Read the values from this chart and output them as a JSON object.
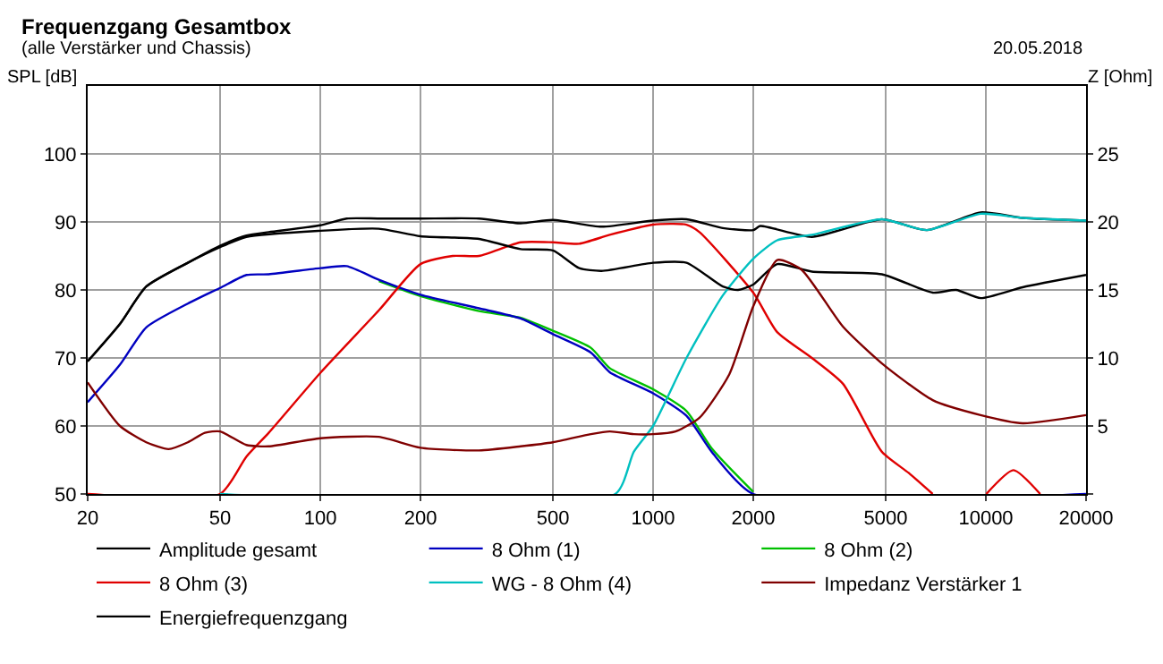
{
  "chart_data": {
    "type": "line",
    "title": "Frequenzgang Gesamtbox",
    "subtitle": "(alle Verstärker und Chassis)",
    "annotations": [
      "20.05.2018"
    ],
    "xlabel": null,
    "ylabel": "SPL [dB]",
    "y2label": "Z [Ohm]",
    "log": "x",
    "grid": true,
    "legend": "bottom",
    "line_style": "solid",
    "marker": "none",
    "xlim": [
      20,
      20000
    ],
    "xticks": [
      20,
      50,
      100,
      200,
      500,
      1000,
      2000,
      5000,
      10000,
      20000
    ],
    "ylim": [
      50,
      110
    ],
    "yticks": [
      50,
      60,
      70,
      80,
      90,
      100
    ],
    "y2lim": [
      0,
      30
    ],
    "y2ticks": [
      {
        "value": 0,
        "label": null
      },
      5,
      10,
      15,
      20,
      25
    ],
    "series": [
      {
        "name": "Amplitude gesamt",
        "color": "#000000",
        "x": [
          20,
          25,
          30,
          40,
          50,
          60,
          70,
          100,
          120,
          150,
          200,
          300,
          400,
          500,
          700,
          1000,
          1260,
          1620,
          2000,
          2100,
          3000,
          4870,
          6650,
          9640,
          12900,
          20000
        ],
        "values": [
          69.5,
          75,
          80.5,
          84,
          86.5,
          88,
          88.5,
          89.5,
          90.5,
          90.5,
          90.5,
          90.5,
          89.8,
          90.3,
          89.3,
          90.2,
          90.4,
          89.1,
          88.8,
          89.4,
          87.8,
          90.4,
          88.8,
          91.4,
          90.6,
          90.2
        ]
      },
      {
        "name": "8 Ohm (1)",
        "color": "#0000c0",
        "x": [
          20,
          25,
          30,
          40,
          50,
          60,
          70,
          100,
          120,
          150,
          200,
          300,
          400,
          500,
          650,
          741,
          1000,
          1260,
          1500,
          2000,
          20000
        ],
        "values": [
          63.5,
          69,
          74.5,
          78,
          80.3,
          82.2,
          82.3,
          83.2,
          83.5,
          81.5,
          79.3,
          77.3,
          75.8,
          73.5,
          70.8,
          67.9,
          64.8,
          61.5,
          56.2,
          50,
          50
        ]
      },
      {
        "name": "8 Ohm (2)",
        "color": "#00c000",
        "x": [
          150,
          200,
          300,
          400,
          500,
          650,
          741,
          1000,
          1260,
          1500,
          2000
        ],
        "values": [
          81.3,
          79.1,
          76.9,
          75.9,
          74,
          71.5,
          68.5,
          65.4,
          62.2,
          56.7,
          50.3
        ]
      },
      {
        "name": "8 Ohm (3)",
        "color": "#e00000",
        "x": [
          20,
          50,
          60,
          70,
          100,
          150,
          200,
          250,
          300,
          400,
          500,
          600,
          741,
          1000,
          1260,
          1378,
          2000,
          2360,
          3000,
          3720,
          4870,
          5860,
          6920,
          8500,
          10030,
          12100,
          14560
        ],
        "values": [
          50,
          50,
          55.5,
          59,
          67.8,
          77,
          83.8,
          85,
          85,
          87,
          87,
          86.8,
          88.1,
          89.6,
          89.6,
          88.5,
          79.6,
          73.8,
          70,
          66.2,
          56.2,
          53.1,
          50,
          null,
          50,
          53.5,
          50
        ]
      },
      {
        "name": "WG - 8 Ohm (4)",
        "color": "#00c0c0",
        "x": [
          50,
          770,
          875,
          1000,
          1260,
          1620,
          2000,
          2360,
          3000,
          4870,
          6650,
          9640,
          12900,
          20000
        ],
        "values": [
          50,
          50,
          56.2,
          60,
          70,
          79.2,
          84.6,
          87.3,
          88.1,
          90.4,
          88.8,
          91.2,
          90.6,
          90.2
        ]
      },
      {
        "name": "Impedanz Verstärker 1",
        "color": "#800000",
        "axis": "y2",
        "x": [
          20,
          25,
          30,
          35,
          40,
          45,
          50,
          60,
          70,
          100,
          150,
          200,
          300,
          400,
          500,
          650,
          741,
          875,
          1000,
          1168,
          1378,
          1695,
          2000,
          2360,
          2790,
          3720,
          4870,
          6920,
          9640,
          12900,
          20000
        ],
        "values": [
          8.2,
          5.0,
          3.8,
          3.3,
          3.8,
          4.5,
          4.6,
          3.6,
          3.5,
          4.1,
          4.2,
          3.4,
          3.2,
          3.5,
          3.8,
          4.4,
          4.6,
          4.4,
          4.4,
          4.6,
          5.6,
          8.8,
          13.8,
          17.2,
          16.5,
          12.3,
          9.6,
          6.9,
          5.8,
          5.2,
          5.8
        ]
      },
      {
        "name": "Energiefrequenzgang",
        "color": "#000000",
        "x": [
          20,
          25,
          30,
          40,
          50,
          60,
          100,
          150,
          200,
          300,
          400,
          500,
          600,
          700,
          1000,
          1260,
          1620,
          1800,
          2000,
          2360,
          3000,
          4870,
          6920,
          8140,
          9640,
          12900,
          20000
        ],
        "values": [
          69.5,
          75,
          80.5,
          84,
          86.3,
          87.8,
          88.7,
          89,
          87.9,
          87.5,
          86,
          85.8,
          83.2,
          82.8,
          84,
          84,
          80.5,
          80,
          80.8,
          83.8,
          82.7,
          82.3,
          79.6,
          80,
          78.8,
          80.4,
          82.2
        ]
      }
    ]
  }
}
